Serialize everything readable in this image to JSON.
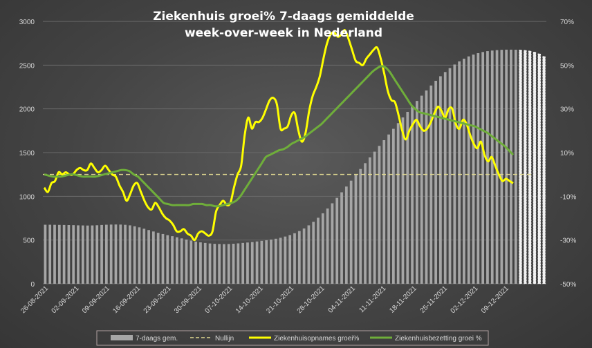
{
  "chart_data": {
    "type": "bar",
    "title_lines": [
      "Ziekenhuis groei% 7-daags gemiddelde",
      "week-over-week in Nederland"
    ],
    "ylim_left": [
      0,
      3000
    ],
    "ylim_right": [
      -50,
      70
    ],
    "y_left_ticks": [
      "0",
      "500",
      "1000",
      "1500",
      "2000",
      "2500",
      "3000"
    ],
    "y_right_ticks": [
      "-50%",
      "-30%",
      "-10%",
      "10%",
      "30%",
      "50%",
      "70%"
    ],
    "x_tick_labels": [
      "26-08-2021",
      "02-09-2021",
      "09-09-2021",
      "16-09-2021",
      "23-09-2021",
      "30-09-2021",
      "07-10-2021",
      "14-10-2021",
      "21-10-2021",
      "28-10-2021",
      "04-11-2021",
      "11-11-2021",
      "18-11-2021",
      "25-11-2021",
      "02-12-2021",
      "09-12-2021"
    ],
    "grid": true,
    "legend_position": "bottom",
    "nullijn_value": 0,
    "series": [
      {
        "name": "7-daags gem.",
        "type": "bar",
        "axis": "left",
        "color": "#a6a6a6",
        "values": [
          675,
          675,
          674,
          673,
          672,
          671,
          670,
          668,
          667,
          666,
          667,
          669,
          672,
          675,
          677,
          678,
          677,
          674,
          668,
          658,
          645,
          630,
          614,
          598,
          583,
          569,
          556,
          544,
          532,
          519,
          506,
          494,
          483,
          474,
          467,
          461,
          457,
          455,
          454,
          455,
          458,
          462,
          467,
          472,
          478,
          484,
          491,
          498,
          506,
          515,
          526,
          540,
          557,
          578,
          603,
          633,
          668,
          709,
          755,
          806,
          861,
          920,
          982,
          1046,
          1112,
          1179,
          1246,
          1313,
          1379,
          1445,
          1511,
          1577,
          1642,
          1707,
          1772,
          1837,
          1902,
          1966,
          2029,
          2091,
          2151,
          2210,
          2267,
          2321,
          2373,
          2421,
          2466,
          2507,
          2543,
          2574,
          2600,
          2621,
          2637,
          2650,
          2660,
          2667,
          2672,
          2675,
          2677,
          2677,
          2676,
          2674,
          2670,
          2662,
          2650,
          2630,
          2600
        ],
        "hatched_last": 6
      },
      {
        "name": "Nullijn",
        "type": "line",
        "axis": "right",
        "color": "#e0d890",
        "dashed": true,
        "values": []
      },
      {
        "name": "Ziekenhuisopnames groei%",
        "type": "line",
        "axis": "right",
        "color": "#ffff00",
        "values": [
          -6,
          -8,
          -4,
          -3,
          1,
          0,
          1,
          0,
          0,
          2,
          3,
          2,
          2,
          5,
          3,
          1,
          2,
          4,
          2,
          0,
          -1,
          -5,
          -8,
          -12,
          -9,
          -5,
          -4,
          -8,
          -12,
          -15,
          -16,
          -13,
          -15,
          -18,
          -20,
          -21,
          -23,
          -26,
          -26,
          -25,
          -27,
          -28,
          -30,
          -27,
          -26,
          -27,
          -28,
          -26,
          -17,
          -14,
          -12,
          -14,
          -13,
          -6,
          0,
          4,
          18,
          26,
          21,
          24,
          24,
          26,
          30,
          34,
          35,
          32,
          21,
          21,
          22,
          27,
          28,
          20,
          15,
          19,
          29,
          36,
          40,
          45,
          53,
          60,
          64,
          65,
          63,
          64,
          66,
          62,
          57,
          52,
          51,
          50,
          53,
          55,
          57,
          58,
          53,
          46,
          38,
          34,
          33,
          27,
          20,
          16,
          20,
          23,
          25,
          22,
          20,
          21,
          24,
          28,
          31,
          29,
          26,
          30,
          30,
          23,
          21,
          25,
          23,
          18,
          14,
          12,
          15,
          9,
          6,
          8,
          4,
          0,
          -3,
          -2,
          -3,
          -4
        ]
      },
      {
        "name": "Ziekenhuisbezetting groei %",
        "type": "line",
        "axis": "right",
        "color": "#6fae3a",
        "values": [
          0,
          -0.5,
          -1,
          -1,
          -1,
          -0.5,
          0,
          0,
          -0.5,
          -1,
          -1,
          -1,
          -1,
          -0.5,
          0,
          0.5,
          1,
          1.5,
          2,
          2,
          1.5,
          0,
          -1,
          -3,
          -5,
          -7,
          -9,
          -11,
          -13,
          -13.5,
          -14,
          -14,
          -14,
          -14,
          -14,
          -13.5,
          -13.5,
          -13.5,
          -14,
          -14,
          -14.5,
          -14.5,
          -14,
          -13.5,
          -13,
          -12,
          -10,
          -7,
          -4,
          -1,
          2,
          5,
          8,
          9,
          10,
          11,
          11.5,
          12.5,
          14,
          15,
          16,
          17,
          18.5,
          20,
          21.5,
          23,
          25,
          27,
          29,
          31,
          33,
          35,
          37,
          39,
          41,
          43,
          45,
          47,
          48.5,
          49.5,
          49,
          47,
          44,
          41,
          38,
          35,
          32,
          30,
          28.5,
          28,
          27.5,
          27,
          26.5,
          26,
          25.5,
          25,
          24.5,
          24,
          23.5,
          23,
          22.5,
          22,
          21,
          20,
          19,
          17.5,
          16,
          14.5,
          13,
          11,
          9
        ]
      }
    ],
    "legend": [
      "7-daags gem.",
      "Nullijn",
      "Ziekenhuisopnames groei%",
      "Ziekenhuisbezetting groei %"
    ]
  }
}
